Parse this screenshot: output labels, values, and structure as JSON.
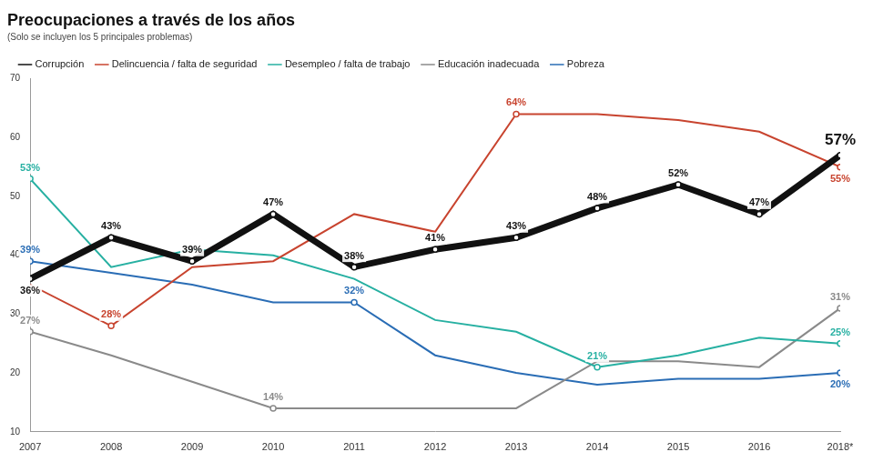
{
  "chart_data": {
    "type": "line",
    "title": "Preocupaciones a través de los años",
    "subtitle": "(Solo se incluyen los 5 principales problemas)",
    "categories": [
      "2007",
      "2008",
      "2009",
      "2010",
      "2011",
      "2012",
      "2013",
      "2014",
      "2015",
      "2016",
      "2018*"
    ],
    "series": [
      {
        "name": "Corrupción",
        "color": "#111111",
        "line_style": "thick",
        "values": [
          36,
          43,
          39,
          47,
          38,
          41,
          43,
          48,
          52,
          47,
          57
        ],
        "value_labels": [
          "36%",
          "43%",
          "39%",
          "47%",
          "38%",
          "41%",
          "43%",
          "48%",
          "52%",
          "47%",
          "57%"
        ]
      },
      {
        "name": "Delincuencia / falta de seguridad",
        "color": "#c8442f",
        "line_style": "solid",
        "values": [
          35,
          28,
          38,
          39,
          47,
          44,
          64,
          64,
          63,
          61,
          55
        ],
        "value_labels": [
          null,
          "28%",
          null,
          null,
          null,
          null,
          "64%",
          null,
          null,
          null,
          "55%"
        ]
      },
      {
        "name": "Desempleo / falta de trabajo",
        "color": "#27b0a2",
        "line_style": "solid",
        "values": [
          53,
          38,
          41,
          40,
          36,
          29,
          27,
          21,
          23,
          26,
          25
        ],
        "value_labels": [
          "53%",
          null,
          null,
          null,
          null,
          null,
          null,
          "21%",
          null,
          null,
          "25%"
        ]
      },
      {
        "name": "Educación inadecuada",
        "color": "#8a8a8a",
        "line_style": "solid",
        "values": [
          27,
          23,
          18.5,
          14,
          14,
          14,
          14,
          22,
          22,
          21,
          31
        ],
        "value_labels": [
          "27%",
          null,
          null,
          "14%",
          null,
          null,
          null,
          null,
          null,
          null,
          "31%"
        ]
      },
      {
        "name": "Pobreza",
        "color": "#2a6db5",
        "line_style": "solid",
        "values": [
          39,
          37,
          35,
          32,
          32,
          23,
          20,
          18,
          19,
          19,
          20
        ],
        "value_labels": [
          "39%",
          null,
          null,
          null,
          "32%",
          null,
          null,
          null,
          null,
          null,
          "20%"
        ]
      }
    ],
    "ylim": [
      10,
      70
    ],
    "yticks": [
      10,
      20,
      30,
      40,
      50,
      60,
      70
    ],
    "grid": false,
    "legend": "top"
  }
}
